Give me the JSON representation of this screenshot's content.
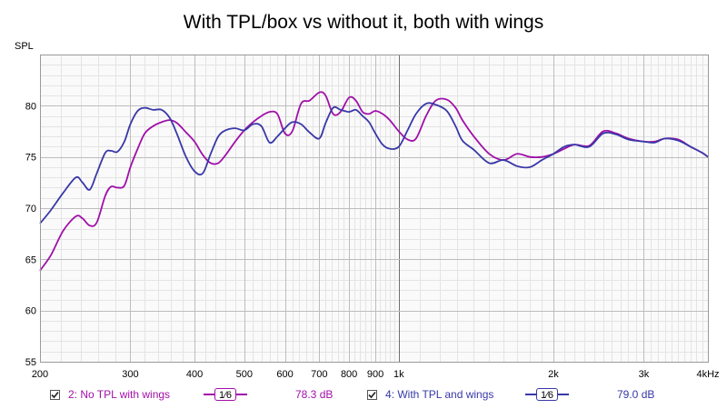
{
  "chart_data": {
    "type": "line",
    "title": "With TPL/box vs without it, both with wings",
    "ylabel": "SPL",
    "xlabel": "",
    "xscale": "log",
    "xlim": [
      200,
      4000
    ],
    "ylim": [
      55,
      85
    ],
    "grid": true,
    "x_ticks": [
      {
        "value": 200,
        "label": "200"
      },
      {
        "value": 300,
        "label": "300"
      },
      {
        "value": 400,
        "label": "400"
      },
      {
        "value": 500,
        "label": "500"
      },
      {
        "value": 600,
        "label": "600"
      },
      {
        "value": 700,
        "label": "700"
      },
      {
        "value": 800,
        "label": "800"
      },
      {
        "value": 900,
        "label": "900"
      },
      {
        "value": 1000,
        "label": "1k"
      },
      {
        "value": 2000,
        "label": "2k"
      },
      {
        "value": 3000,
        "label": "3k"
      },
      {
        "value": 4000,
        "label": "4kHz"
      }
    ],
    "y_ticks": [
      55,
      60,
      65,
      70,
      75,
      80
    ],
    "series": [
      {
        "name": "2: No TPL with wings",
        "color": "#a010a8",
        "x": [
          200,
          210,
          222,
          235,
          242,
          250,
          258,
          268,
          275,
          283,
          292,
          300,
          310,
          320,
          332,
          345,
          358,
          370,
          385,
          400,
          415,
          430,
          445,
          460,
          480,
          500,
          520,
          540,
          560,
          580,
          600,
          620,
          645,
          670,
          700,
          720,
          745,
          770,
          800,
          825,
          850,
          875,
          900,
          930,
          960,
          1000,
          1040,
          1080,
          1130,
          1180,
          1240,
          1290,
          1330,
          1400,
          1500,
          1600,
          1700,
          1800,
          1900,
          2000,
          2100,
          2200,
          2350,
          2500,
          2650,
          2800,
          3000,
          3150,
          3300,
          3500,
          3700,
          3900,
          4000
        ],
        "y": [
          63.9,
          65.4,
          67.8,
          69.2,
          69.0,
          68.3,
          68.6,
          71.2,
          72.1,
          72.0,
          72.2,
          74.0,
          75.8,
          77.3,
          78.0,
          78.4,
          78.6,
          78.3,
          77.4,
          76.5,
          75.2,
          74.4,
          74.4,
          75.2,
          76.5,
          77.6,
          78.4,
          79.0,
          79.4,
          79.2,
          77.3,
          77.5,
          80.2,
          80.5,
          81.3,
          81.0,
          79.2,
          79.4,
          80.8,
          80.5,
          79.4,
          79.2,
          79.5,
          79.2,
          78.6,
          77.5,
          76.7,
          76.8,
          79.0,
          80.5,
          80.6,
          79.8,
          78.6,
          77.0,
          75.3,
          74.7,
          75.3,
          75.0,
          75.0,
          75.3,
          75.8,
          76.2,
          76.1,
          77.5,
          77.3,
          76.8,
          76.5,
          76.5,
          76.8,
          76.7,
          76.0,
          75.4,
          75.0
        ]
      },
      {
        "name": "4: With TPL and wings",
        "color": "#3838a8",
        "x": [
          200,
          210,
          222,
          235,
          242,
          250,
          258,
          268,
          275,
          283,
          292,
          300,
          310,
          320,
          332,
          345,
          358,
          370,
          385,
          400,
          415,
          430,
          445,
          460,
          480,
          500,
          520,
          540,
          560,
          580,
          600,
          620,
          645,
          670,
          700,
          720,
          745,
          770,
          800,
          825,
          850,
          875,
          900,
          930,
          960,
          1000,
          1040,
          1080,
          1130,
          1180,
          1240,
          1290,
          1330,
          1400,
          1500,
          1600,
          1700,
          1800,
          1900,
          2000,
          2100,
          2200,
          2350,
          2500,
          2650,
          2800,
          3000,
          3150,
          3300,
          3500,
          3700,
          3900,
          4000
        ],
        "y": [
          68.5,
          69.8,
          71.5,
          73.0,
          72.5,
          71.8,
          73.4,
          75.4,
          75.6,
          75.5,
          76.5,
          78.2,
          79.5,
          79.8,
          79.6,
          79.6,
          78.8,
          77.2,
          75.0,
          73.6,
          73.4,
          75.3,
          77.0,
          77.6,
          77.8,
          77.6,
          78.2,
          78.0,
          76.4,
          77.0,
          77.8,
          78.4,
          78.2,
          77.4,
          76.8,
          78.3,
          79.8,
          79.6,
          79.4,
          79.6,
          79.0,
          78.4,
          77.3,
          76.2,
          75.8,
          76.0,
          77.6,
          79.2,
          80.2,
          80.1,
          79.5,
          78.0,
          76.6,
          75.7,
          74.4,
          74.7,
          74.1,
          74.0,
          74.7,
          75.3,
          76.0,
          76.2,
          76.0,
          77.3,
          77.2,
          76.7,
          76.5,
          76.4,
          76.8,
          76.6,
          76.0,
          75.4,
          75.0
        ]
      }
    ]
  },
  "legend": [
    {
      "checked": true,
      "label": "2: No TPL with wings",
      "smoothing": "1⁄6",
      "level": "78.3 dB",
      "color": "#a010a8"
    },
    {
      "checked": true,
      "label": "4: With TPL and wings",
      "smoothing": "1⁄6",
      "level": "79.0 dB",
      "color": "#3838a8"
    }
  ]
}
